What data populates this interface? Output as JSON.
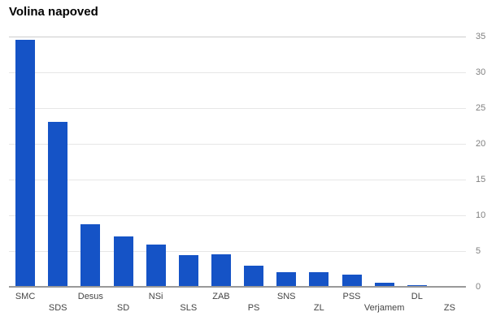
{
  "title": "Volina napoved",
  "colors": {
    "bar": "#1553c6",
    "baseline": "#999999",
    "gridline": "#e6e6e6",
    "gridline_top": "#cccccc",
    "y_axis_label": "#808080",
    "x_axis_label": "#444444",
    "title": "#000000",
    "background": "#ffffff"
  },
  "chart_data": {
    "type": "bar",
    "title": "Volina napoved",
    "categories": [
      "SMC",
      "SDS",
      "Desus",
      "SD",
      "NSi",
      "SLS",
      "ZAB",
      "PS",
      "SNS",
      "ZL",
      "PSS",
      "Verjamem",
      "DL",
      "ZS"
    ],
    "values": [
      34.5,
      23.1,
      8.7,
      7.0,
      5.9,
      4.4,
      4.6,
      3.0,
      2.1,
      2.0,
      1.7,
      0.55,
      0.2,
      0.12
    ],
    "xlabel": "",
    "ylabel": "",
    "ylim": [
      0,
      35
    ],
    "yticks": [
      0,
      5,
      10,
      15,
      20,
      25,
      30,
      35
    ],
    "grid": true,
    "legend": "none",
    "y_axis_position": "right",
    "x_label_layout": "alternating-two-rows"
  }
}
